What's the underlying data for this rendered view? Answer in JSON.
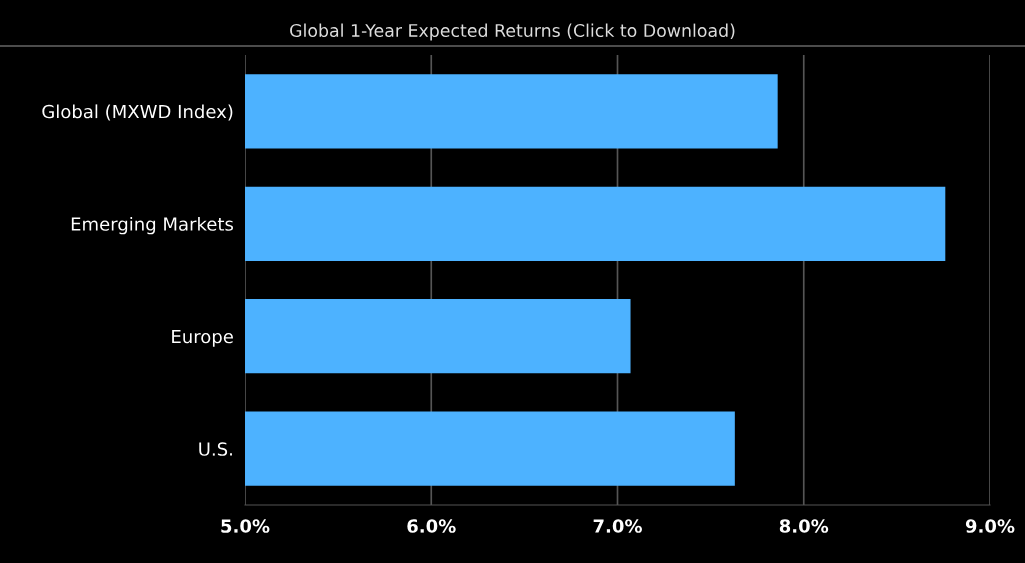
{
  "chart_data": {
    "type": "bar",
    "orientation": "horizontal",
    "title": "Global 1-Year Expected Returns (Click to Download)",
    "categories": [
      "Global (MXWD Index)",
      "Emerging Markets",
      "Europe",
      "U.S."
    ],
    "values": [
      7.86,
      8.76,
      7.07,
      7.63
    ],
    "color": "#4db2ff",
    "xlim": [
      5,
      9
    ],
    "xticks": [
      {
        "value": 5,
        "label": "5.0%"
      },
      {
        "value": 6,
        "label": "6.0%"
      },
      {
        "value": 7,
        "label": "7.0%"
      },
      {
        "value": 8,
        "label": "8.0%"
      },
      {
        "value": 9,
        "label": "9.0%"
      }
    ],
    "grid": "x",
    "legend": false
  }
}
